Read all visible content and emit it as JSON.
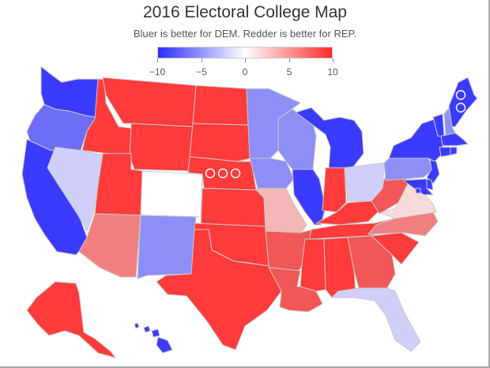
{
  "title": "2016 Electoral College Map",
  "subtitle": "Bluer is better for DEM. Redder is better for REP.",
  "legend": {
    "min": -10,
    "max": 10,
    "ticks": [
      {
        "label": "−10",
        "value": -10
      },
      {
        "label": "−5",
        "value": -5
      },
      {
        "label": "0",
        "value": 0
      },
      {
        "label": "5",
        "value": 5
      },
      {
        "label": "10",
        "value": 10
      }
    ],
    "gradient": [
      "#2c2cff",
      "#ffffff",
      "#ff2c2c"
    ]
  },
  "colors": {
    "strong_dem": "#3b3bff",
    "lean_dem": "#6d6df5",
    "light_dem": "#8e8ef7",
    "faint_dem": "#cfcff9",
    "neutral": "#ffffff",
    "faint_rep": "#f9dada",
    "light_rep": "#f4b6b6",
    "lean_rep": "#f27f7f",
    "mid_rep": "#f25757",
    "strong_rep": "#ff3b3b",
    "border": "#c8c8c8"
  },
  "states": {
    "WA": "strong_dem",
    "OR": "lean_dem",
    "CA": "strong_dem",
    "NV": "faint_dem",
    "ID": "strong_rep",
    "MT": "strong_rep",
    "WY": "strong_rep",
    "UT": "strong_rep",
    "AZ": "lean_rep",
    "CO": "neutral",
    "NM": "light_dem",
    "ND": "strong_rep",
    "SD": "strong_rep",
    "NE": "strong_rep",
    "KS": "strong_rep",
    "OK": "strong_rep",
    "TX": "strong_rep",
    "MN": "light_dem",
    "IA": "light_dem",
    "MO": "light_rep",
    "AR": "mid_rep",
    "LA": "mid_rep",
    "WI": "light_dem",
    "IL": "strong_dem",
    "MI": "strong_dem",
    "IN": "strong_rep",
    "OH": "faint_dem",
    "KY": "strong_rep",
    "TN": "strong_rep",
    "MS": "strong_rep",
    "AL": "strong_rep",
    "GA": "mid_rep",
    "FL": "faint_dem",
    "SC": "strong_rep",
    "NC": "lean_rep",
    "VA": "faint_rep",
    "WV": "mid_rep",
    "PA": "light_dem",
    "NY": "strong_dem",
    "VT": "strong_dem",
    "NH": "light_dem",
    "ME": "strong_dem",
    "MA": "strong_dem",
    "CT": "strong_dem",
    "RI": "strong_dem",
    "NJ": "strong_dem",
    "DE": "strong_dem",
    "MD": "strong_dem",
    "DC": "strong_dem",
    "AK": "strong_rep",
    "HI": "strong_dem"
  },
  "split_districts": {
    "NE": 3,
    "ME": 2
  }
}
